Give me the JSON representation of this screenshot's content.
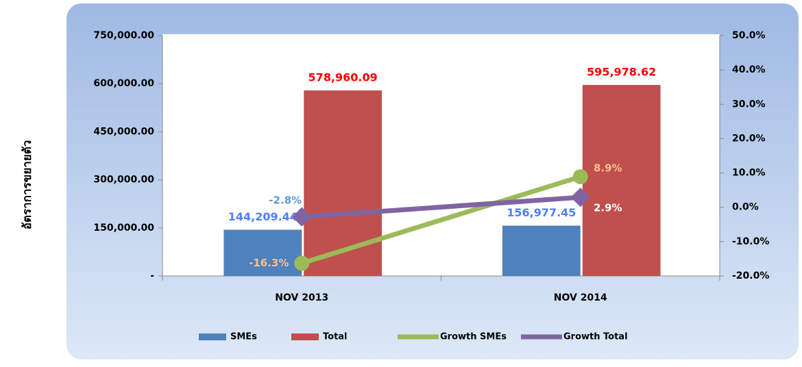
{
  "chart_data": {
    "type": "bar_line",
    "y_axis_label": "อัตราการขยายตัว",
    "categories": [
      "NOV 2013",
      "NOV 2014"
    ],
    "ylim": [
      0,
      750000
    ],
    "yticks": [
      {
        "value": 0,
        "label": "-"
      },
      {
        "value": 150000,
        "label": "150,000.00"
      },
      {
        "value": 300000,
        "label": "300,000.00"
      },
      {
        "value": 450000,
        "label": "450,000.00"
      },
      {
        "value": 600000,
        "label": "600,000.00"
      },
      {
        "value": 750000,
        "label": "750,000.00"
      }
    ],
    "y2lim": [
      -20,
      50
    ],
    "y2ticks": [
      {
        "value": -20,
        "label": "-20.0%"
      },
      {
        "value": -10,
        "label": "-10.0%"
      },
      {
        "value": 0,
        "label": "0.0%"
      },
      {
        "value": 10,
        "label": "10.0%"
      },
      {
        "value": 20,
        "label": "20.0%"
      },
      {
        "value": 30,
        "label": "30.0%"
      },
      {
        "value": 40,
        "label": "40.0%"
      },
      {
        "value": 50,
        "label": "50.0%"
      }
    ],
    "legend": "bottom",
    "series": [
      {
        "name": "SMEs",
        "type": "bar",
        "color": "#4f81bd",
        "values": [
          144209.44,
          156977.45
        ],
        "value_labels": [
          "144,209.44",
          "156,977.45"
        ]
      },
      {
        "name": "Total",
        "type": "bar",
        "color": "#c0504d",
        "values": [
          578960.09,
          595978.62
        ],
        "value_labels": [
          "578,960.09",
          "595,978.62"
        ]
      },
      {
        "name": "Growth SMEs",
        "type": "line",
        "axis": "y2",
        "color": "#9bbb59",
        "values": [
          -16.3,
          8.9
        ],
        "value_labels": [
          "-16.3%",
          "8.9%"
        ]
      },
      {
        "name": "Growth Total",
        "type": "line",
        "axis": "y2",
        "color": "#8064a2",
        "values": [
          -2.8,
          2.9
        ],
        "value_labels": [
          "-2.8%",
          "2.9%"
        ]
      }
    ]
  }
}
